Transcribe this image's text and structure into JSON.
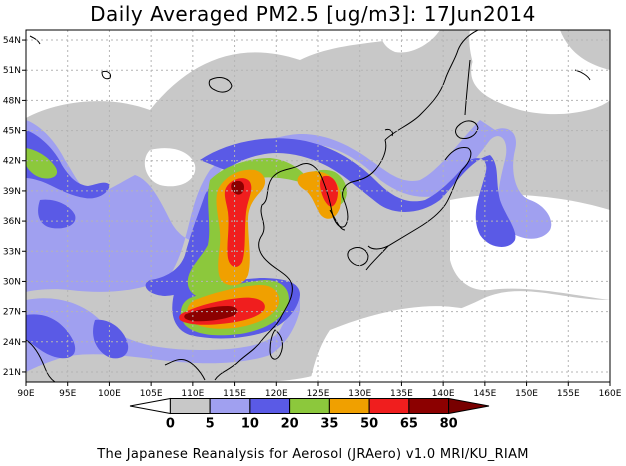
{
  "title": "Daily Averaged PM2.5 [ug/m3]: 17Jun2014",
  "footer": "The Japanese Reanalysis for Aerosol (JRAero) v1.0 MRI/KU_RIAM",
  "map": {
    "lon_range": [
      90,
      160
    ],
    "lat_range": [
      20,
      55
    ],
    "lon_ticks": [
      "90E",
      "95E",
      "100E",
      "105E",
      "110E",
      "115E",
      "120E",
      "125E",
      "130E",
      "135E",
      "140E",
      "145E",
      "150E",
      "155E",
      "160E"
    ],
    "lat_ticks": [
      "54N",
      "51N",
      "48N",
      "45N",
      "42N",
      "39N",
      "36N",
      "33N",
      "30N",
      "27N",
      "24N",
      "21N"
    ],
    "lat_tick_values": [
      54,
      51,
      48,
      45,
      42,
      39,
      36,
      33,
      30,
      27,
      24,
      21
    ],
    "grid": true
  },
  "colorbar": {
    "levels": [
      "0",
      "5",
      "10",
      "20",
      "35",
      "50",
      "65",
      "80"
    ],
    "colors": [
      "#ffffff",
      "#c8c8c8",
      "#a0a0f0",
      "#5a5ae6",
      "#8cc83c",
      "#f0a000",
      "#f01e1e",
      "#8c0000"
    ],
    "under_color": "#ffffff",
    "over_color": "#780000"
  }
}
